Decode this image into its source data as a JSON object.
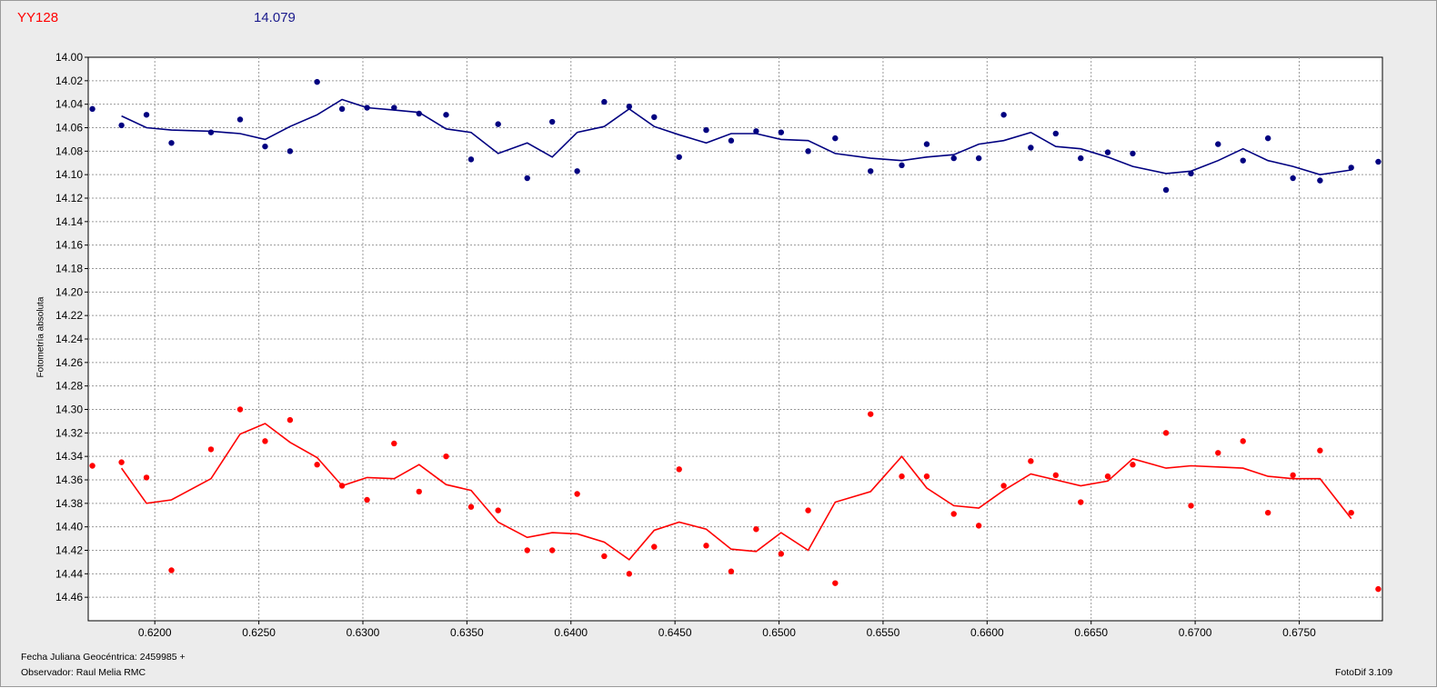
{
  "header": {
    "name": "YY128",
    "magnitude": "14.079"
  },
  "footer": {
    "date_label": "Fecha Juliana Geocéntrica: 2459985 +",
    "observer": "Observador: Raul Melia RMC",
    "software": "FotoDif 3.109"
  },
  "chart_data": {
    "type": "scatter",
    "title": "",
    "xlabel": "",
    "ylabel": "Fotometría absoluta",
    "xlim": [
      0.6168,
      0.679
    ],
    "ylim": [
      14.0,
      14.48
    ],
    "y_inverted": true,
    "grid": true,
    "x_ticks": [
      "0.6200",
      "0.6250",
      "0.6300",
      "0.6350",
      "0.6400",
      "0.6450",
      "0.6500",
      "0.6550",
      "0.6600",
      "0.6650",
      "0.6700",
      "0.6750"
    ],
    "y_ticks": [
      "14.00",
      "14.02",
      "14.04",
      "14.06",
      "14.08",
      "14.10",
      "14.12",
      "14.14",
      "14.16",
      "14.18",
      "14.20",
      "14.22",
      "14.24",
      "14.26",
      "14.28",
      "14.30",
      "14.32",
      "14.34",
      "14.36",
      "14.38",
      "14.40",
      "14.42",
      "14.44",
      "14.46"
    ],
    "series": [
      {
        "color": "#000080",
        "points_x": [
          0.617,
          0.6184,
          0.6196,
          0.6208,
          0.6227,
          0.6241,
          0.6253,
          0.6265,
          0.6278,
          0.629,
          0.6302,
          0.6315,
          0.6327,
          0.634,
          0.6352,
          0.6365,
          0.6379,
          0.6391,
          0.6403,
          0.6416,
          0.6428,
          0.644,
          0.6452,
          0.6465,
          0.6477,
          0.6489,
          0.6501,
          0.6514,
          0.6527,
          0.6544,
          0.6559,
          0.6571,
          0.6584,
          0.6596,
          0.6608,
          0.6621,
          0.6633,
          0.6645,
          0.6658,
          0.667,
          0.6686,
          0.6698,
          0.6711,
          0.6723,
          0.6735,
          0.6747,
          0.676,
          0.6775,
          0.6788
        ],
        "points_y": [
          14.044,
          14.058,
          14.049,
          14.073,
          14.064,
          14.053,
          14.076,
          14.08,
          14.021,
          14.044,
          14.043,
          14.043,
          14.048,
          14.049,
          14.087,
          14.057,
          14.103,
          14.055,
          14.097,
          14.038,
          14.042,
          14.051,
          14.085,
          14.062,
          14.071,
          14.063,
          14.064,
          14.08,
          14.069,
          14.097,
          14.092,
          14.074,
          14.086,
          14.086,
          14.049,
          14.077,
          14.065,
          14.086,
          14.081,
          14.082,
          14.113,
          14.099,
          14.074,
          14.088,
          14.069,
          14.103,
          14.105,
          14.094,
          14.089
        ],
        "trend_x": [
          0.6184,
          0.6196,
          0.6208,
          0.6227,
          0.6241,
          0.6253,
          0.6265,
          0.6278,
          0.629,
          0.6302,
          0.6315,
          0.6327,
          0.634,
          0.6352,
          0.6365,
          0.6379,
          0.6391,
          0.6403,
          0.6416,
          0.6428,
          0.644,
          0.6452,
          0.6465,
          0.6477,
          0.6489,
          0.6501,
          0.6514,
          0.6527,
          0.6544,
          0.6559,
          0.6571,
          0.6584,
          0.6596,
          0.6608,
          0.6621,
          0.6633,
          0.6645,
          0.6658,
          0.667,
          0.6686,
          0.6698,
          0.6711,
          0.6723,
          0.6735,
          0.6747,
          0.676,
          0.6775
        ],
        "trend_y": [
          14.05,
          14.06,
          14.062,
          14.063,
          14.065,
          14.07,
          14.059,
          14.049,
          14.036,
          14.043,
          14.045,
          14.047,
          14.061,
          14.064,
          14.082,
          14.073,
          14.085,
          14.064,
          14.059,
          14.044,
          14.059,
          14.066,
          14.073,
          14.065,
          14.065,
          14.07,
          14.071,
          14.082,
          14.086,
          14.088,
          14.085,
          14.083,
          14.074,
          14.071,
          14.064,
          14.076,
          14.078,
          14.085,
          14.093,
          14.099,
          14.097,
          14.088,
          14.078,
          14.088,
          14.093,
          14.1,
          14.096
        ]
      },
      {
        "color": "#ff0000",
        "points_x": [
          0.617,
          0.6184,
          0.6196,
          0.6208,
          0.6227,
          0.6241,
          0.6253,
          0.6265,
          0.6278,
          0.629,
          0.6302,
          0.6315,
          0.6327,
          0.634,
          0.6352,
          0.6365,
          0.6379,
          0.6391,
          0.6403,
          0.6416,
          0.6428,
          0.644,
          0.6452,
          0.6465,
          0.6477,
          0.6489,
          0.6501,
          0.6514,
          0.6527,
          0.6544,
          0.6559,
          0.6571,
          0.6584,
          0.6596,
          0.6608,
          0.6621,
          0.6633,
          0.6645,
          0.6658,
          0.667,
          0.6686,
          0.6698,
          0.6711,
          0.6723,
          0.6735,
          0.6747,
          0.676,
          0.6775,
          0.6788
        ],
        "points_y": [
          14.348,
          14.345,
          14.358,
          14.437,
          14.334,
          14.3,
          14.327,
          14.309,
          14.347,
          14.365,
          14.377,
          14.329,
          14.37,
          14.34,
          14.383,
          14.386,
          14.42,
          14.42,
          14.372,
          14.425,
          14.44,
          14.417,
          14.351,
          14.416,
          14.438,
          14.402,
          14.423,
          14.386,
          14.448,
          14.304,
          14.357,
          14.357,
          14.389,
          14.399,
          14.365,
          14.344,
          14.356,
          14.379,
          14.357,
          14.347,
          14.32,
          14.382,
          14.337,
          14.327,
          14.388,
          14.356,
          14.335,
          14.388,
          14.453
        ],
        "trend_x": [
          0.6184,
          0.6196,
          0.6208,
          0.6227,
          0.6241,
          0.6253,
          0.6265,
          0.6278,
          0.629,
          0.6302,
          0.6315,
          0.6327,
          0.634,
          0.6352,
          0.6365,
          0.6379,
          0.6391,
          0.6403,
          0.6416,
          0.6428,
          0.644,
          0.6452,
          0.6465,
          0.6477,
          0.6489,
          0.6501,
          0.6514,
          0.6527,
          0.6544,
          0.6559,
          0.6571,
          0.6584,
          0.6596,
          0.6608,
          0.6621,
          0.6633,
          0.6645,
          0.6658,
          0.667,
          0.6686,
          0.6698,
          0.6711,
          0.6723,
          0.6735,
          0.6747,
          0.676,
          0.6775
        ],
        "trend_y": [
          14.35,
          14.38,
          14.377,
          14.359,
          14.321,
          14.312,
          14.328,
          14.341,
          14.365,
          14.358,
          14.359,
          14.347,
          14.364,
          14.369,
          14.396,
          14.409,
          14.405,
          14.406,
          14.413,
          14.428,
          14.403,
          14.396,
          14.402,
          14.419,
          14.421,
          14.405,
          14.42,
          14.379,
          14.37,
          14.34,
          14.367,
          14.382,
          14.384,
          14.369,
          14.355,
          14.36,
          14.365,
          14.361,
          14.342,
          14.35,
          14.348,
          14.349,
          14.35,
          14.357,
          14.359,
          14.359,
          14.393
        ]
      }
    ]
  }
}
